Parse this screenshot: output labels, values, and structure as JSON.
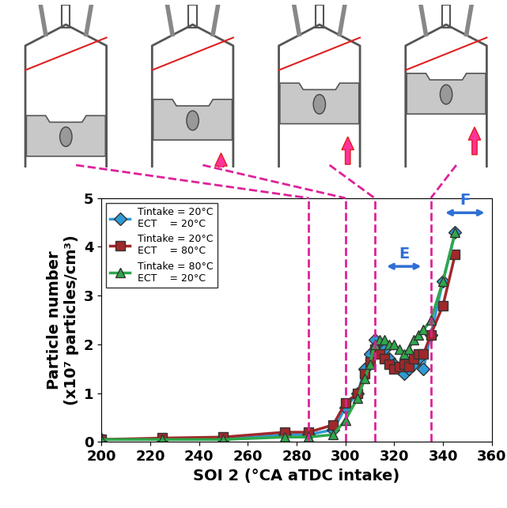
{
  "chart_data": {
    "type": "line",
    "x_label": "SOI 2 (°CA aTDC intake)",
    "y_label": "Particle number\n(x10⁷ particles/cm³)",
    "x": [
      200,
      225,
      250,
      275,
      285,
      295,
      300,
      305,
      308,
      310,
      312,
      314,
      316,
      318,
      320,
      322,
      324,
      326,
      328,
      330,
      332,
      335,
      340,
      345
    ],
    "series": [
      {
        "name": "Tintake = 20°C\nECT    = 20°C",
        "color": "#2e9bd6",
        "marker": "diamond",
        "values": [
          0.05,
          0.05,
          0.05,
          0.15,
          0.15,
          0.25,
          0.7,
          1.0,
          1.5,
          1.8,
          2.1,
          2.0,
          1.9,
          1.7,
          1.6,
          1.5,
          1.4,
          1.5,
          1.6,
          1.7,
          1.5,
          2.2,
          3.3,
          4.3
        ]
      },
      {
        "name": "Tintake = 20°C\nECT    = 80°C",
        "color": "#a0282a",
        "marker": "square",
        "values": [
          0.05,
          0.08,
          0.1,
          0.2,
          0.2,
          0.35,
          0.8,
          1.0,
          1.4,
          1.65,
          1.9,
          1.8,
          1.7,
          1.6,
          1.5,
          1.55,
          1.6,
          1.55,
          1.7,
          1.8,
          1.8,
          2.2,
          2.8,
          3.85
        ]
      },
      {
        "name": "Tintake = 80°C\nECT    = 20°C",
        "color": "#2ea84a",
        "marker": "triangle",
        "values": [
          0.05,
          0.05,
          0.05,
          0.1,
          0.1,
          0.15,
          0.45,
          0.9,
          1.3,
          1.6,
          2.0,
          2.1,
          2.1,
          2.0,
          2.0,
          1.9,
          1.8,
          1.9,
          2.1,
          2.2,
          2.3,
          2.5,
          3.3,
          4.3
        ]
      }
    ],
    "xlim": [
      200,
      360
    ],
    "xticks": [
      200,
      220,
      240,
      260,
      280,
      300,
      320,
      340,
      360
    ],
    "ylim": [
      0,
      5
    ],
    "yticks": [
      0,
      1,
      2,
      3,
      4,
      5
    ],
    "legend": "upper left",
    "marked_soi": [
      285,
      300,
      312,
      335
    ],
    "annotations": [
      {
        "text": "E",
        "x_from": 316,
        "x_to": 332,
        "y": 3.6
      },
      {
        "text": "F",
        "x_from": 340,
        "x_to": 358,
        "y": 4.7
      }
    ]
  }
}
